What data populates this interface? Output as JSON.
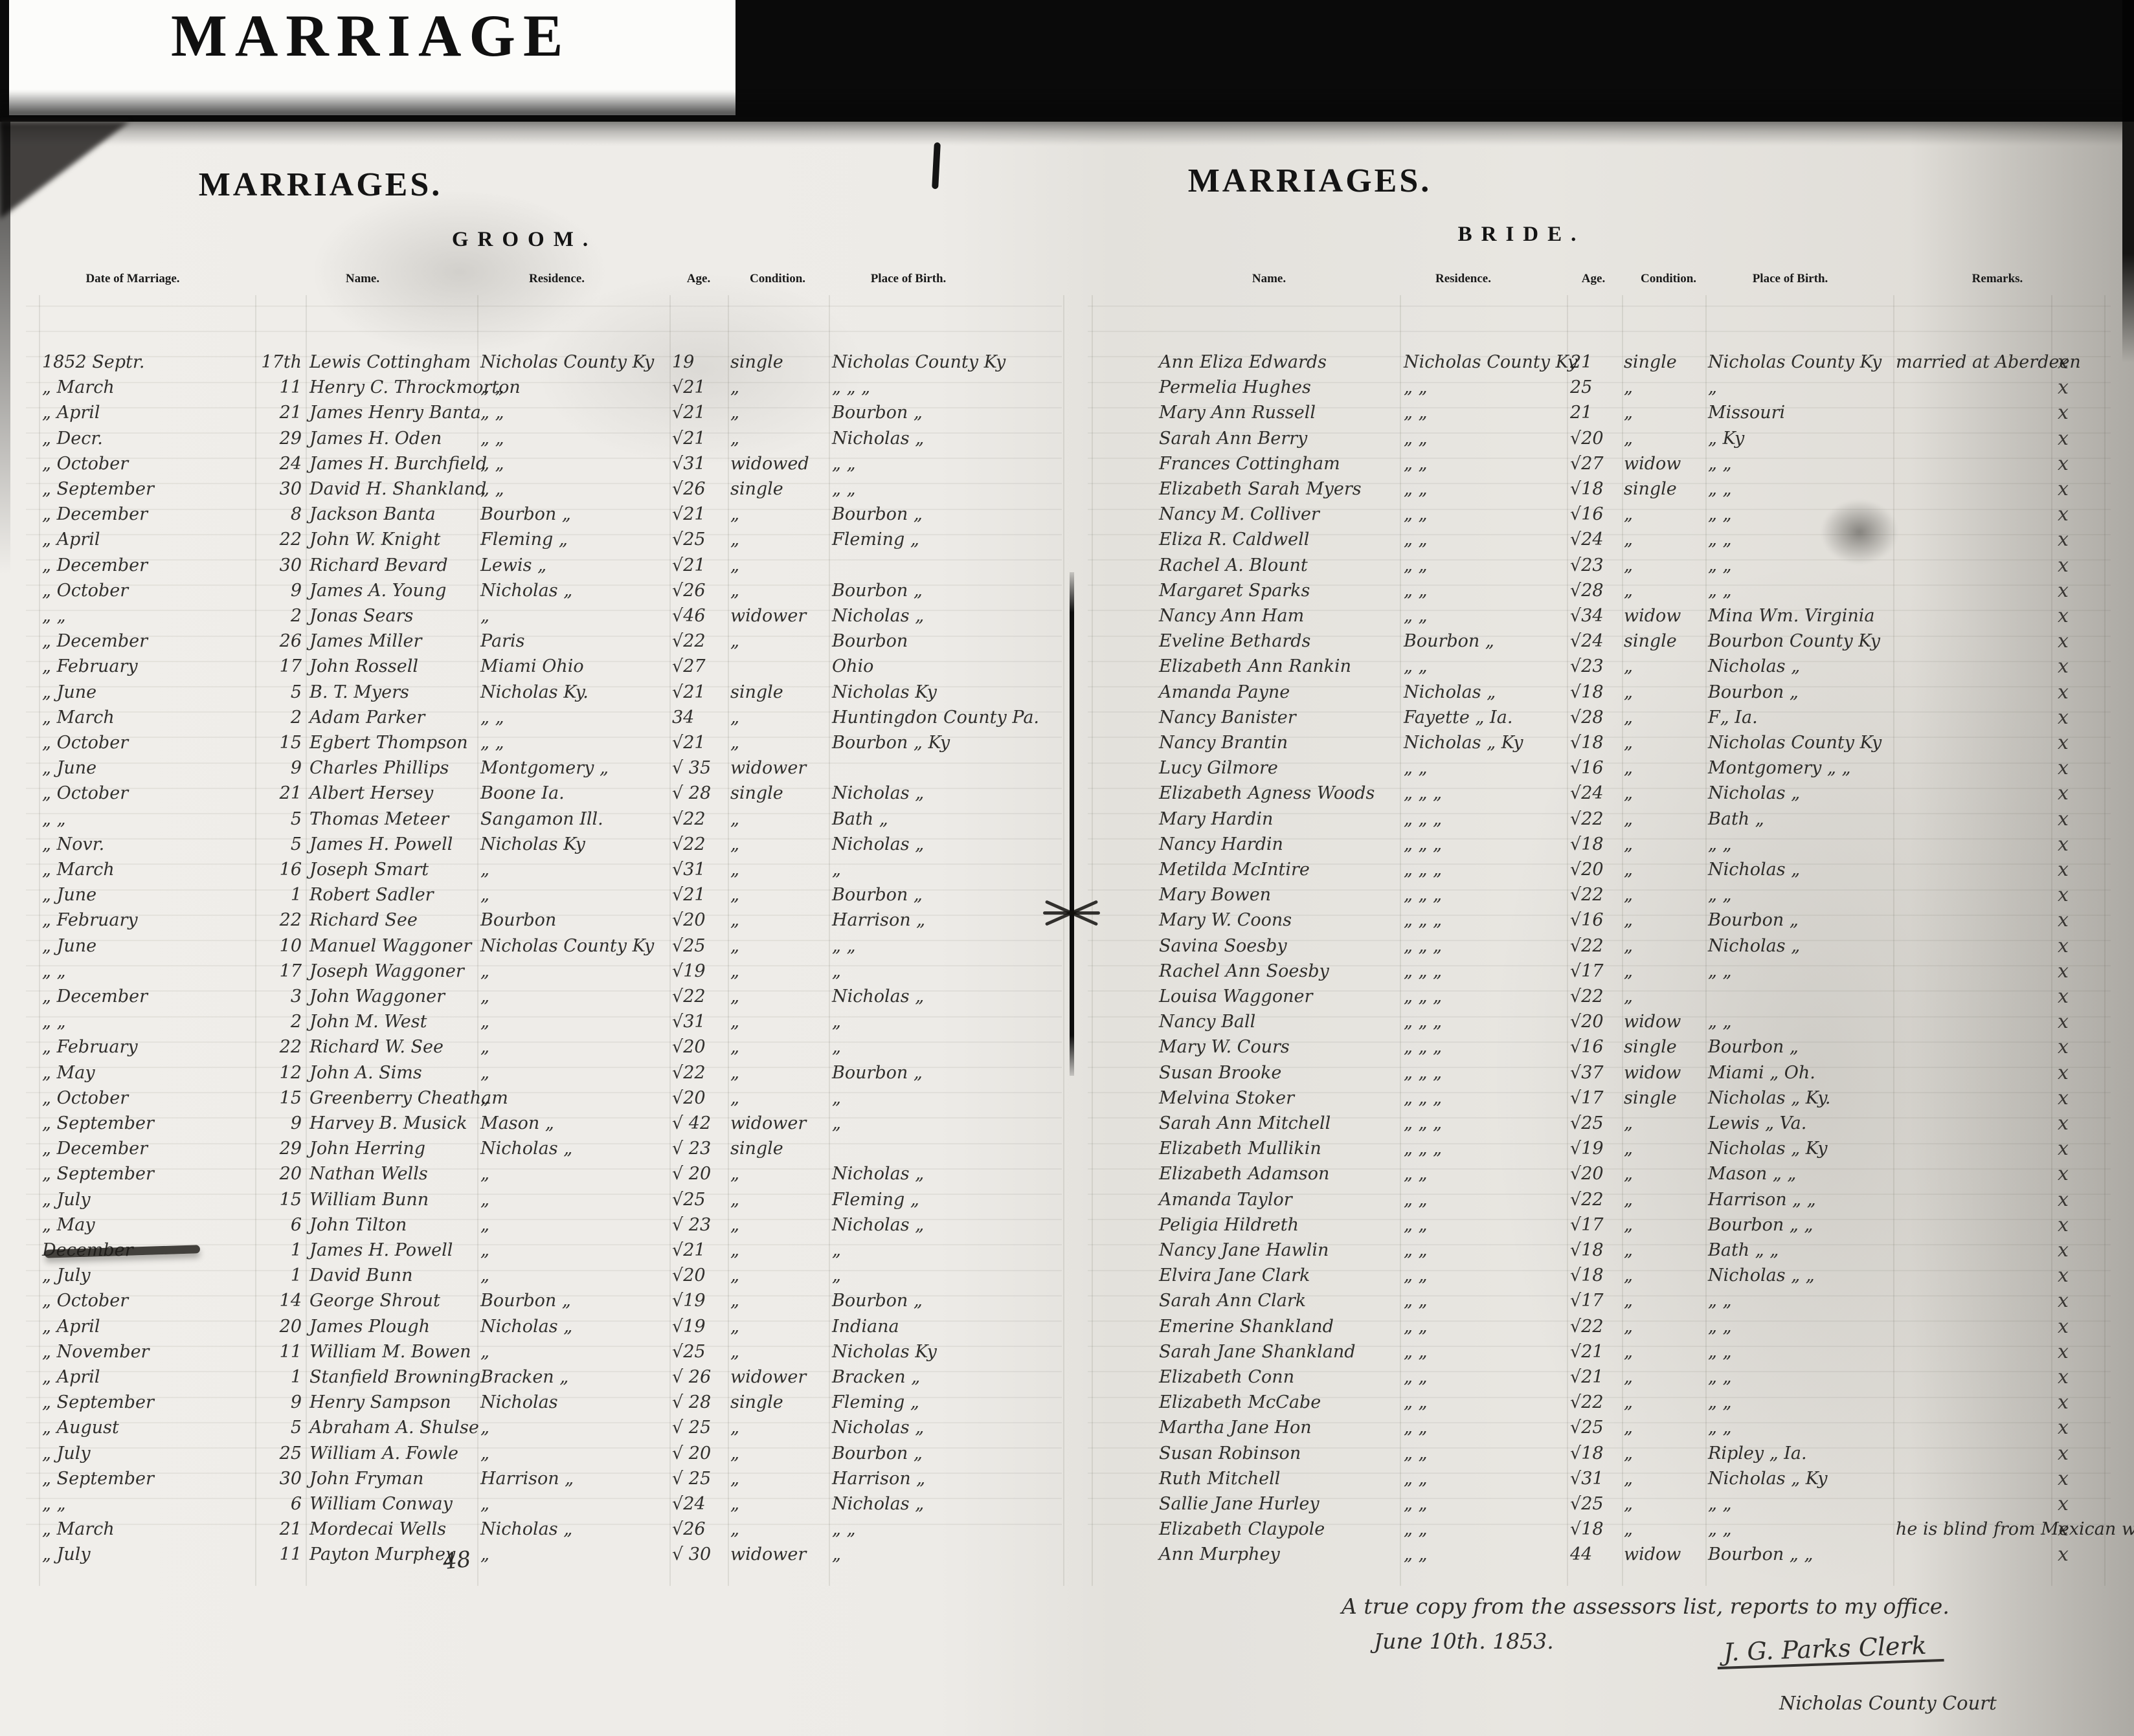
{
  "header": {
    "card_title": "MARRIAGE",
    "left_page_title": "MARRIAGES.",
    "right_page_title": "MARRIAGES.",
    "left_section": "GROOM.",
    "right_section": "BRIDE."
  },
  "columns": {
    "groom": [
      "Date of Marriage.",
      "Name.",
      "Residence.",
      "Age.",
      "Condition.",
      "Place of Birth."
    ],
    "bride": [
      "Name.",
      "Residence.",
      "Age.",
      "Condition.",
      "Place of Birth.",
      "Remarks."
    ]
  },
  "page_number": "48",
  "edge_mark": "x",
  "footer": {
    "line1": "A true copy from the assessors list, reports to my office.",
    "line2": "June 10th. 1853.",
    "signature": "J. G. Parks Clerk",
    "signature_sub": "Nicholas County Court"
  },
  "rows": [
    {
      "d": "1852 Septr.",
      "dy": "17th",
      "gn": "Lewis Cottingham",
      "gr": "Nicholas County Ky",
      "ga": "19",
      "gc": "single",
      "gp": "Nicholas County Ky",
      "bn": "Ann Eliza Edwards",
      "br": "Nicholas County Ky",
      "ba": "21",
      "bc": "single",
      "bp": "Nicholas County Ky",
      "rm": "married at Aberdeen"
    },
    {
      "d": "„ March",
      "dy": "11",
      "gn": "Henry C. Throckmorton",
      "gr": "„   „",
      "ga": "√21",
      "gc": "„",
      "gp": "„   „   „",
      "bn": "Permelia Hughes",
      "br": "„   „",
      "ba": "25",
      "bc": "„",
      "bp": "„"
    },
    {
      "d": "„ April",
      "dy": "21",
      "gn": "James Henry Banta",
      "gr": "„   „",
      "ga": "√21",
      "gc": "„",
      "gp": "Bourbon   „",
      "bn": "Mary Ann Russell",
      "br": "„   „",
      "ba": "21",
      "bc": "„",
      "bp": "Missouri"
    },
    {
      "d": "„ Decr.",
      "dy": "29",
      "gn": "James H. Oden",
      "gr": "„   „",
      "ga": "√21",
      "gc": "„",
      "gp": "Nicholas   „",
      "bn": "Sarah Ann Berry",
      "br": "„   „",
      "ba": "√20",
      "bc": "„",
      "bp": "„   Ky"
    },
    {
      "d": "„ October",
      "dy": "24",
      "gn": "James H. Burchfield",
      "gr": "„   „",
      "ga": "√31",
      "gc": "widowed",
      "gp": "„   „",
      "bn": "Frances Cottingham",
      "br": "„   „",
      "ba": "√27",
      "bc": "widow",
      "bp": "„   „"
    },
    {
      "d": "„ September",
      "dy": "30",
      "gn": "David H. Shankland",
      "gr": "„   „",
      "ga": "√26",
      "gc": "single",
      "gp": "„   „",
      "bn": "Elizabeth Sarah Myers",
      "br": "„   „",
      "ba": "√18",
      "bc": "single",
      "bp": "„   „"
    },
    {
      "d": "„ December",
      "dy": "8",
      "gn": "Jackson Banta",
      "gr": "Bourbon   „",
      "ga": "√21",
      "gc": "„",
      "gp": "Bourbon   „",
      "bn": "Nancy M. Colliver",
      "br": "„   „",
      "ba": "√16",
      "bc": "„",
      "bp": "„   „"
    },
    {
      "d": "„ April",
      "dy": "22",
      "gn": "John W. Knight",
      "gr": "Fleming   „",
      "ga": "√25",
      "gc": "„",
      "gp": "Fleming   „",
      "bn": "Eliza R. Caldwell",
      "br": "„   „",
      "ba": "√24",
      "bc": "„",
      "bp": "„   „"
    },
    {
      "d": "„ December",
      "dy": "30",
      "gn": "Richard Bevard",
      "gr": "Lewis   „",
      "ga": "√21",
      "gc": "„",
      "gp": "",
      "bn": "Rachel A. Blount",
      "br": "„   „",
      "ba": "√23",
      "bc": "„",
      "bp": "„   „"
    },
    {
      "d": "„ October",
      "dy": "9",
      "gn": "James A. Young",
      "gr": "Nicholas   „",
      "ga": "√26",
      "gc": "„",
      "gp": "Bourbon   „",
      "bn": "Margaret Sparks",
      "br": "„   „",
      "ba": "√28",
      "bc": "„",
      "bp": "„   „"
    },
    {
      "d": "„ „",
      "dy": "2",
      "gn": "Jonas Sears",
      "gr": "„",
      "ga": "√46",
      "gc": "widower",
      "gp": "Nicholas   „",
      "bn": "Nancy Ann Ham",
      "br": "„   „",
      "ba": "√34",
      "bc": "widow",
      "bp": "Mina Wm. Virginia"
    },
    {
      "d": "„ December",
      "dy": "26",
      "gn": "James Miller",
      "gr": "Paris",
      "ga": "√22",
      "gc": "„",
      "gp": "Bourbon",
      "bn": "Eveline Bethards",
      "br": "Bourbon   „",
      "ba": "√24",
      "bc": "single",
      "bp": "Bourbon County Ky"
    },
    {
      "d": "„ February",
      "dy": "17",
      "gn": "John Rossell",
      "gr": "Miami      Ohio",
      "ga": "√27",
      "gc": "",
      "gp": "                    Ohio",
      "bn": "Elizabeth Ann Rankin",
      "br": "„   „",
      "ba": "√23",
      "bc": "„",
      "bp": "Nicholas   „"
    },
    {
      "d": "„ June",
      "dy": "5",
      "gn": "B. T. Myers",
      "gr": "Nicholas      Ky.",
      "ga": "√21",
      "gc": "single",
      "gp": "Nicholas      Ky",
      "bn": "Amanda Payne",
      "br": "Nicholas   „",
      "ba": "√18",
      "bc": "„",
      "bp": "Bourbon   „"
    },
    {
      "d": "„ March",
      "dy": "2",
      "gn": "Adam Parker",
      "gr": "„   „",
      "ga": "34",
      "gc": "„",
      "gp": "Huntingdon County  Pa.",
      "bn": "Nancy Banister",
      "br": "Fayette  „  Ia.",
      "ba": "√28",
      "bc": "„",
      "bp": "F„        Ia."
    },
    {
      "d": "„ October",
      "dy": "15",
      "gn": "Egbert Thompson",
      "gr": "„   „",
      "ga": "√21",
      "gc": "„",
      "gp": "Bourbon  „     Ky",
      "bn": "Nancy Brantin",
      "br": "Nicholas  „  Ky",
      "ba": "√18",
      "bc": "„",
      "bp": "Nicholas County Ky"
    },
    {
      "d": "„ June",
      "dy": "9",
      "gn": "Charles Phillips",
      "gr": "Montgomery  „",
      "ga": "√ 35",
      "gc": "widower",
      "gp": "",
      "bn": "Lucy Gilmore",
      "br": "„   „",
      "ba": "√16",
      "bc": "„",
      "bp": "Montgomery  „  „"
    },
    {
      "d": "„ October",
      "dy": "21",
      "gn": "Albert Hersey",
      "gr": "Boone      Ia.",
      "ga": "√ 28",
      "gc": "single",
      "gp": "Nicholas   „",
      "bn": "Elizabeth Agness Woods",
      "br": "„   „   „",
      "ba": "√24",
      "bc": "„",
      "bp": "Nicholas   „"
    },
    {
      "d": "„ „",
      "dy": "5",
      "gn": "Thomas Meteer",
      "gr": "Sangamon      Ill.",
      "ga": "√22",
      "gc": "„",
      "gp": "Bath   „",
      "bn": "Mary Hardin",
      "br": "„   „   „",
      "ba": "√22",
      "bc": "„",
      "bp": "Bath   „"
    },
    {
      "d": "„ Novr.",
      "dy": "5",
      "gn": "James H. Powell",
      "gr": "Nicholas      Ky",
      "ga": "√22",
      "gc": "„",
      "gp": "Nicholas   „",
      "bn": "Nancy Hardin",
      "br": "„   „   „",
      "ba": "√18",
      "bc": "„",
      "bp": "„   „"
    },
    {
      "d": "„ March",
      "dy": "16",
      "gn": "Joseph Smart",
      "gr": "„",
      "ga": "√31",
      "gc": "„",
      "gp": "„",
      "bn": "Metilda McIntire",
      "br": "„   „   „",
      "ba": "√20",
      "bc": "„",
      "bp": "Nicholas   „"
    },
    {
      "d": "„ June",
      "dy": "1",
      "gn": "Robert Sadler",
      "gr": "„",
      "ga": "√21",
      "gc": "„",
      "gp": "Bourbon   „",
      "bn": "Mary Bowen",
      "br": "„   „   „",
      "ba": "√22",
      "bc": "„",
      "bp": "„   „"
    },
    {
      "d": "„ February",
      "dy": "22",
      "gn": "Richard See",
      "gr": "Bourbon",
      "ga": "√20",
      "gc": "„",
      "gp": "Harrison   „",
      "bn": "Mary W. Coons",
      "br": "„   „   „",
      "ba": "√16",
      "bc": "„",
      "bp": "Bourbon   „"
    },
    {
      "d": "„ June",
      "dy": "10",
      "gn": "Manuel Waggoner",
      "gr": "Nicholas County  Ky",
      "ga": "√25",
      "gc": "„",
      "gp": "„   „",
      "bn": "Savina Soesby",
      "br": "„   „   „",
      "ba": "√22",
      "bc": "„",
      "bp": "Nicholas   „"
    },
    {
      "d": "„ „",
      "dy": "17",
      "gn": "Joseph Waggoner",
      "gr": "„",
      "ga": "√19",
      "gc": "„",
      "gp": "„",
      "bn": "Rachel Ann Soesby",
      "br": "„   „   „",
      "ba": "√17",
      "bc": "„",
      "bp": "„   „"
    },
    {
      "d": "„ December",
      "dy": "3",
      "gn": "John Waggoner",
      "gr": "„",
      "ga": "√22",
      "gc": "„",
      "gp": "Nicholas   „",
      "bn": "Louisa Waggoner",
      "br": "„   „   „",
      "ba": "√22",
      "bc": "„",
      "bp": ""
    },
    {
      "d": "„ „",
      "dy": "2",
      "gn": "John M. West",
      "gr": "„",
      "ga": "√31",
      "gc": "„",
      "gp": "„",
      "bn": "Nancy Ball",
      "br": "„   „   „",
      "ba": "√20",
      "bc": "widow",
      "bp": "„   „"
    },
    {
      "d": "„ February",
      "dy": "22",
      "gn": "Richard W. See",
      "gr": "„",
      "ga": "√20",
      "gc": "„",
      "gp": "„",
      "bn": "Mary W. Cours",
      "br": "„   „   „",
      "ba": "√16",
      "bc": "single",
      "bp": "Bourbon   „"
    },
    {
      "d": "„ May",
      "dy": "12",
      "gn": "John A. Sims",
      "gr": "„",
      "ga": "√22",
      "gc": "„",
      "gp": "Bourbon   „",
      "bn": "Susan Brooke",
      "br": "„   „   „",
      "ba": "√37",
      "bc": "widow",
      "bp": "Miami   „   Oh."
    },
    {
      "d": "„ October",
      "dy": "15",
      "gn": "Greenberry Cheatham",
      "gr": "„",
      "ga": "√20",
      "gc": "„",
      "gp": "„",
      "bn": "Melvina Stoker",
      "br": "„   „   „",
      "ba": "√17",
      "bc": "single",
      "bp": "Nicholas   „   Ky."
    },
    {
      "d": "„ September",
      "dy": "9",
      "gn": "Harvey B. Musick",
      "gr": "Mason   „",
      "ga": "√ 42",
      "gc": "widower",
      "gp": "„",
      "bn": "Sarah Ann Mitchell",
      "br": "„   „   „",
      "ba": "√25",
      "bc": "„",
      "bp": "Lewis   „   Va."
    },
    {
      "d": "„ December",
      "dy": "29",
      "gn": "John Herring",
      "gr": "Nicholas   „",
      "ga": "√ 23",
      "gc": "single",
      "gp": "",
      "bn": "Elizabeth Mullikin",
      "br": "„   „   „",
      "ba": "√19",
      "bc": "„",
      "bp": "Nicholas   „   Ky"
    },
    {
      "d": "„ September",
      "dy": "20",
      "gn": "Nathan Wells",
      "gr": "„",
      "ga": "√ 20",
      "gc": "„",
      "gp": "Nicholas   „",
      "bn": "Elizabeth Adamson",
      "br": "„   „",
      "ba": "√20",
      "bc": "„",
      "bp": "Mason   „   „"
    },
    {
      "d": "„ July",
      "dy": "15",
      "gn": "William Bunn",
      "gr": "„",
      "ga": "√25",
      "gc": "„",
      "gp": "Fleming   „",
      "bn": "Amanda Taylor",
      "br": "„   „",
      "ba": "√22",
      "bc": "„",
      "bp": "Harrison   „   „"
    },
    {
      "d": "„ May",
      "dy": "6",
      "gn": "John Tilton",
      "gr": "„",
      "ga": "√ 23",
      "gc": "„",
      "gp": "Nicholas   „",
      "bn": "Peligia Hildreth",
      "br": "„   „",
      "ba": "√17",
      "bc": "„",
      "bp": "Bourbon   „   „"
    },
    {
      "d": "December",
      "strike": true,
      "dy": "1",
      "gn": "James H. Powell",
      "gr": "„",
      "ga": "√21",
      "gc": "„",
      "gp": "„",
      "bn": "Nancy Jane Hawlin",
      "br": "„   „",
      "ba": "√18",
      "bc": "„",
      "bp": "Bath   „   „"
    },
    {
      "d": "„ July",
      "dy": "1",
      "gn": "David Bunn",
      "gr": "„",
      "ga": "√20",
      "gc": "„",
      "gp": "„",
      "bn": "Elvira Jane Clark",
      "br": "„   „",
      "ba": "√18",
      "bc": "„",
      "bp": "Nicholas   „   „"
    },
    {
      "d": "„ October",
      "dy": "14",
      "gn": "George Shrout",
      "gr": "Bourbon   „",
      "ga": "√19",
      "gc": "„",
      "gp": "Bourbon   „",
      "bn": "Sarah Ann Clark",
      "br": "„   „",
      "ba": "√17",
      "bc": "„",
      "bp": "„   „"
    },
    {
      "d": "„ April",
      "dy": "20",
      "gn": "James Plough",
      "gr": "Nicholas   „",
      "ga": "√19",
      "gc": "„",
      "gp": "                 Indiana",
      "bn": "Emerine Shankland",
      "br": "„   „",
      "ba": "√22",
      "bc": "„",
      "bp": "„   „"
    },
    {
      "d": "„ November",
      "dy": "11",
      "gn": "William M. Bowen",
      "gr": "„",
      "ga": "√25",
      "gc": "„",
      "gp": "Nicholas      Ky",
      "bn": "Sarah Jane Shankland",
      "br": "„   „",
      "ba": "√21",
      "bc": "„",
      "bp": "„   „"
    },
    {
      "d": "„ April",
      "dy": "1",
      "gn": "Stanfield Browning",
      "gr": "Bracken   „",
      "ga": "√ 26",
      "gc": "widower",
      "gp": "Bracken   „",
      "bn": "Elizabeth Conn",
      "br": "„   „",
      "ba": "√21",
      "bc": "„",
      "bp": "„   „"
    },
    {
      "d": "„ September",
      "dy": "9",
      "gn": "Henry Sampson",
      "gr": "Nicholas",
      "ga": "√ 28",
      "gc": "single",
      "gp": "Fleming   „",
      "bn": "Elizabeth McCabe",
      "br": "„   „",
      "ba": "√22",
      "bc": "„",
      "bp": "„   „"
    },
    {
      "d": "„ August",
      "dy": "5",
      "gn": "Abraham A. Shulse",
      "gr": "„",
      "ga": "√ 25",
      "gc": "„",
      "gp": "Nicholas   „",
      "bn": "Martha Jane Hon",
      "br": "„   „",
      "ba": "√25",
      "bc": "„",
      "bp": "„   „"
    },
    {
      "d": "„ July",
      "dy": "25",
      "gn": "William A. Fowle",
      "gr": "„",
      "ga": "√ 20",
      "gc": "„",
      "gp": "Bourbon   „",
      "bn": "Susan Robinson",
      "br": "„   „",
      "ba": "√18",
      "bc": "„",
      "bp": "Ripley   „   Ia."
    },
    {
      "d": "„ September",
      "dy": "30",
      "gn": "John Fryman",
      "gr": "Harrison   „",
      "ga": "√ 25",
      "gc": "„",
      "gp": "Harrison   „",
      "bn": "Ruth Mitchell",
      "br": "„   „",
      "ba": "√31",
      "bc": "„",
      "bp": "Nicholas   „   Ky"
    },
    {
      "d": "„ „",
      "dy": "6",
      "gn": "William Conway",
      "gr": "„",
      "ga": "√24",
      "gc": "„",
      "gp": "Nicholas   „",
      "bn": "Sallie Jane Hurley",
      "br": "„   „",
      "ba": "√25",
      "bc": "„",
      "bp": "„   „"
    },
    {
      "d": "„ March",
      "dy": "21",
      "gn": "Mordecai Wells",
      "gr": "Nicholas   „",
      "ga": "√26",
      "gc": "„",
      "gp": "„   „",
      "bn": "Elizabeth Claypole",
      "br": "„   „",
      "ba": "√18",
      "bc": "„",
      "bp": "„   „",
      "rm": "he is blind from Mexican war"
    },
    {
      "d": "„ July",
      "dy": "11",
      "gn": "Payton Murphey",
      "gr": "„",
      "ga": "√ 30",
      "gc": "widower",
      "gp": "„",
      "bn": "Ann Murphey",
      "br": "„   „",
      "ba": "44",
      "bc": "widow",
      "bp": "Bourbon   „   „"
    }
  ]
}
